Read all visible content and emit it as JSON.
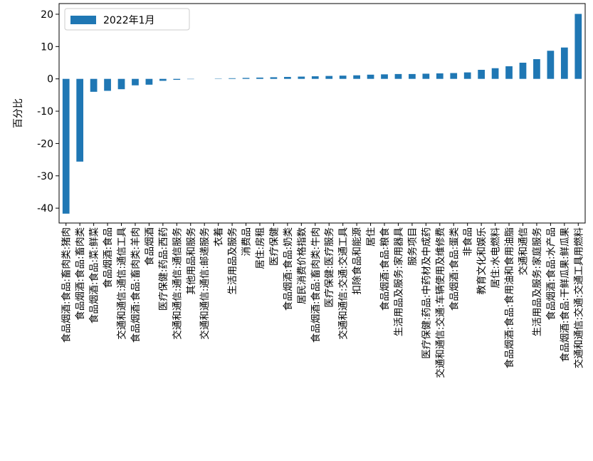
{
  "chart_data": {
    "type": "bar",
    "ylabel": "百分比",
    "series": [
      {
        "name": "2022年1月",
        "color": "#1f77b4",
        "values": [
          -41.7,
          -25.6,
          -4.0,
          -3.7,
          -3.2,
          -2.0,
          -1.8,
          -0.6,
          -0.3,
          -0.1,
          0.0,
          0.1,
          0.2,
          0.3,
          0.4,
          0.5,
          0.6,
          0.7,
          0.8,
          0.9,
          1.0,
          1.1,
          1.3,
          1.4,
          1.5,
          1.5,
          1.6,
          1.7,
          1.8,
          2.0,
          2.8,
          3.3,
          3.9,
          5.0,
          6.1,
          8.7,
          9.7,
          20.1
        ]
      }
    ],
    "categories": [
      "食品烟酒:食品:畜肉类:猪肉",
      "食品烟酒:食品:畜肉类",
      "食品烟酒:食品:菜:鲜菜",
      "食品烟酒:食品",
      "交通和通信:通信:通信工具",
      "食品烟酒:食品:畜肉类:羊肉",
      "食品烟酒",
      "医疗保健:药品:西药",
      "交通和通信:通信:通信服务",
      "其他用品和服务",
      "交通和通信:通信:邮递服务",
      "衣着",
      "生活用品及服务",
      "消费品",
      "居住:房租",
      "医疗保健",
      "食品烟酒:食品:奶类",
      "居民消费价格指数",
      "食品烟酒:食品:畜肉类:牛肉",
      "医疗保健:医疗服务",
      "交通和通信:交通:交通工具",
      "扣除食品和能源",
      "居住",
      "食品烟酒:食品:粮食",
      "生活用品及服务:家用器具",
      "服务项目",
      "医疗保健:药品:中药材及中成药",
      "交通和通信:交通:车辆使用及维修费",
      "食品烟酒:食品:蛋类",
      "非食品",
      "教育文化和娱乐",
      "居住:水电燃料",
      "食品烟酒:食品:食用油和食用油脂",
      "交通和通信",
      "生活用品及服务:家庭服务",
      "食品烟酒:食品:水产品",
      "食品烟酒:食品:干鲜瓜果:鲜瓜果",
      "交通和通信:交通:交通工具用燃料"
    ],
    "ylim": [
      -44.6,
      23.3
    ],
    "yticks": [
      -40,
      -30,
      -20,
      -10,
      0,
      10,
      20
    ],
    "legend": "upper left"
  }
}
